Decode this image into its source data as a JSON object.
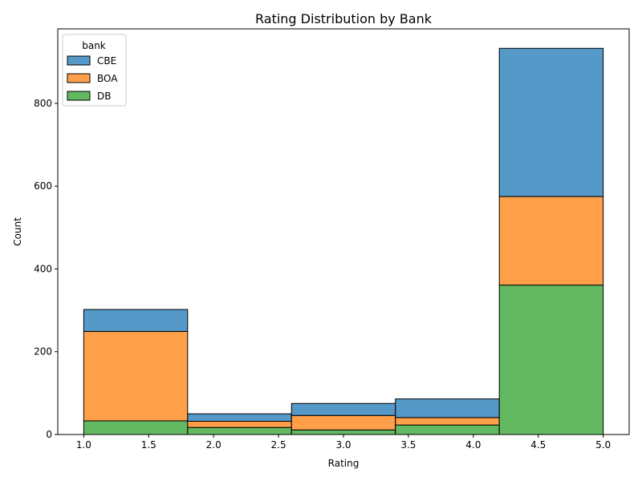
{
  "chart_data": {
    "type": "bar",
    "title": "Rating Distribution by Bank",
    "xlabel": "Rating",
    "ylabel": "Count",
    "xlim": [
      0.8,
      5.2
    ],
    "ylim": [
      0,
      980
    ],
    "x_ticks": [
      "1.0",
      "1.5",
      "2.0",
      "2.5",
      "3.0",
      "3.5",
      "4.0",
      "4.5",
      "5.0"
    ],
    "y_ticks": [
      "0",
      "200",
      "400",
      "600",
      "800"
    ],
    "bin_edges": [
      1.0,
      1.8,
      2.6,
      3.4,
      4.2,
      5.0
    ],
    "stacked": true,
    "grid": false,
    "legend": {
      "title": "bank",
      "placement": "top-left"
    },
    "series": [
      {
        "name": "CBE",
        "color": "#5599c8",
        "values": [
          53,
          18,
          29,
          45,
          358
        ]
      },
      {
        "name": "BOA",
        "color": "#ff9f4a",
        "values": [
          216,
          15,
          35,
          18,
          214
        ]
      },
      {
        "name": "DB",
        "color": "#63b862",
        "values": [
          33,
          17,
          11,
          23,
          361
        ]
      }
    ]
  }
}
